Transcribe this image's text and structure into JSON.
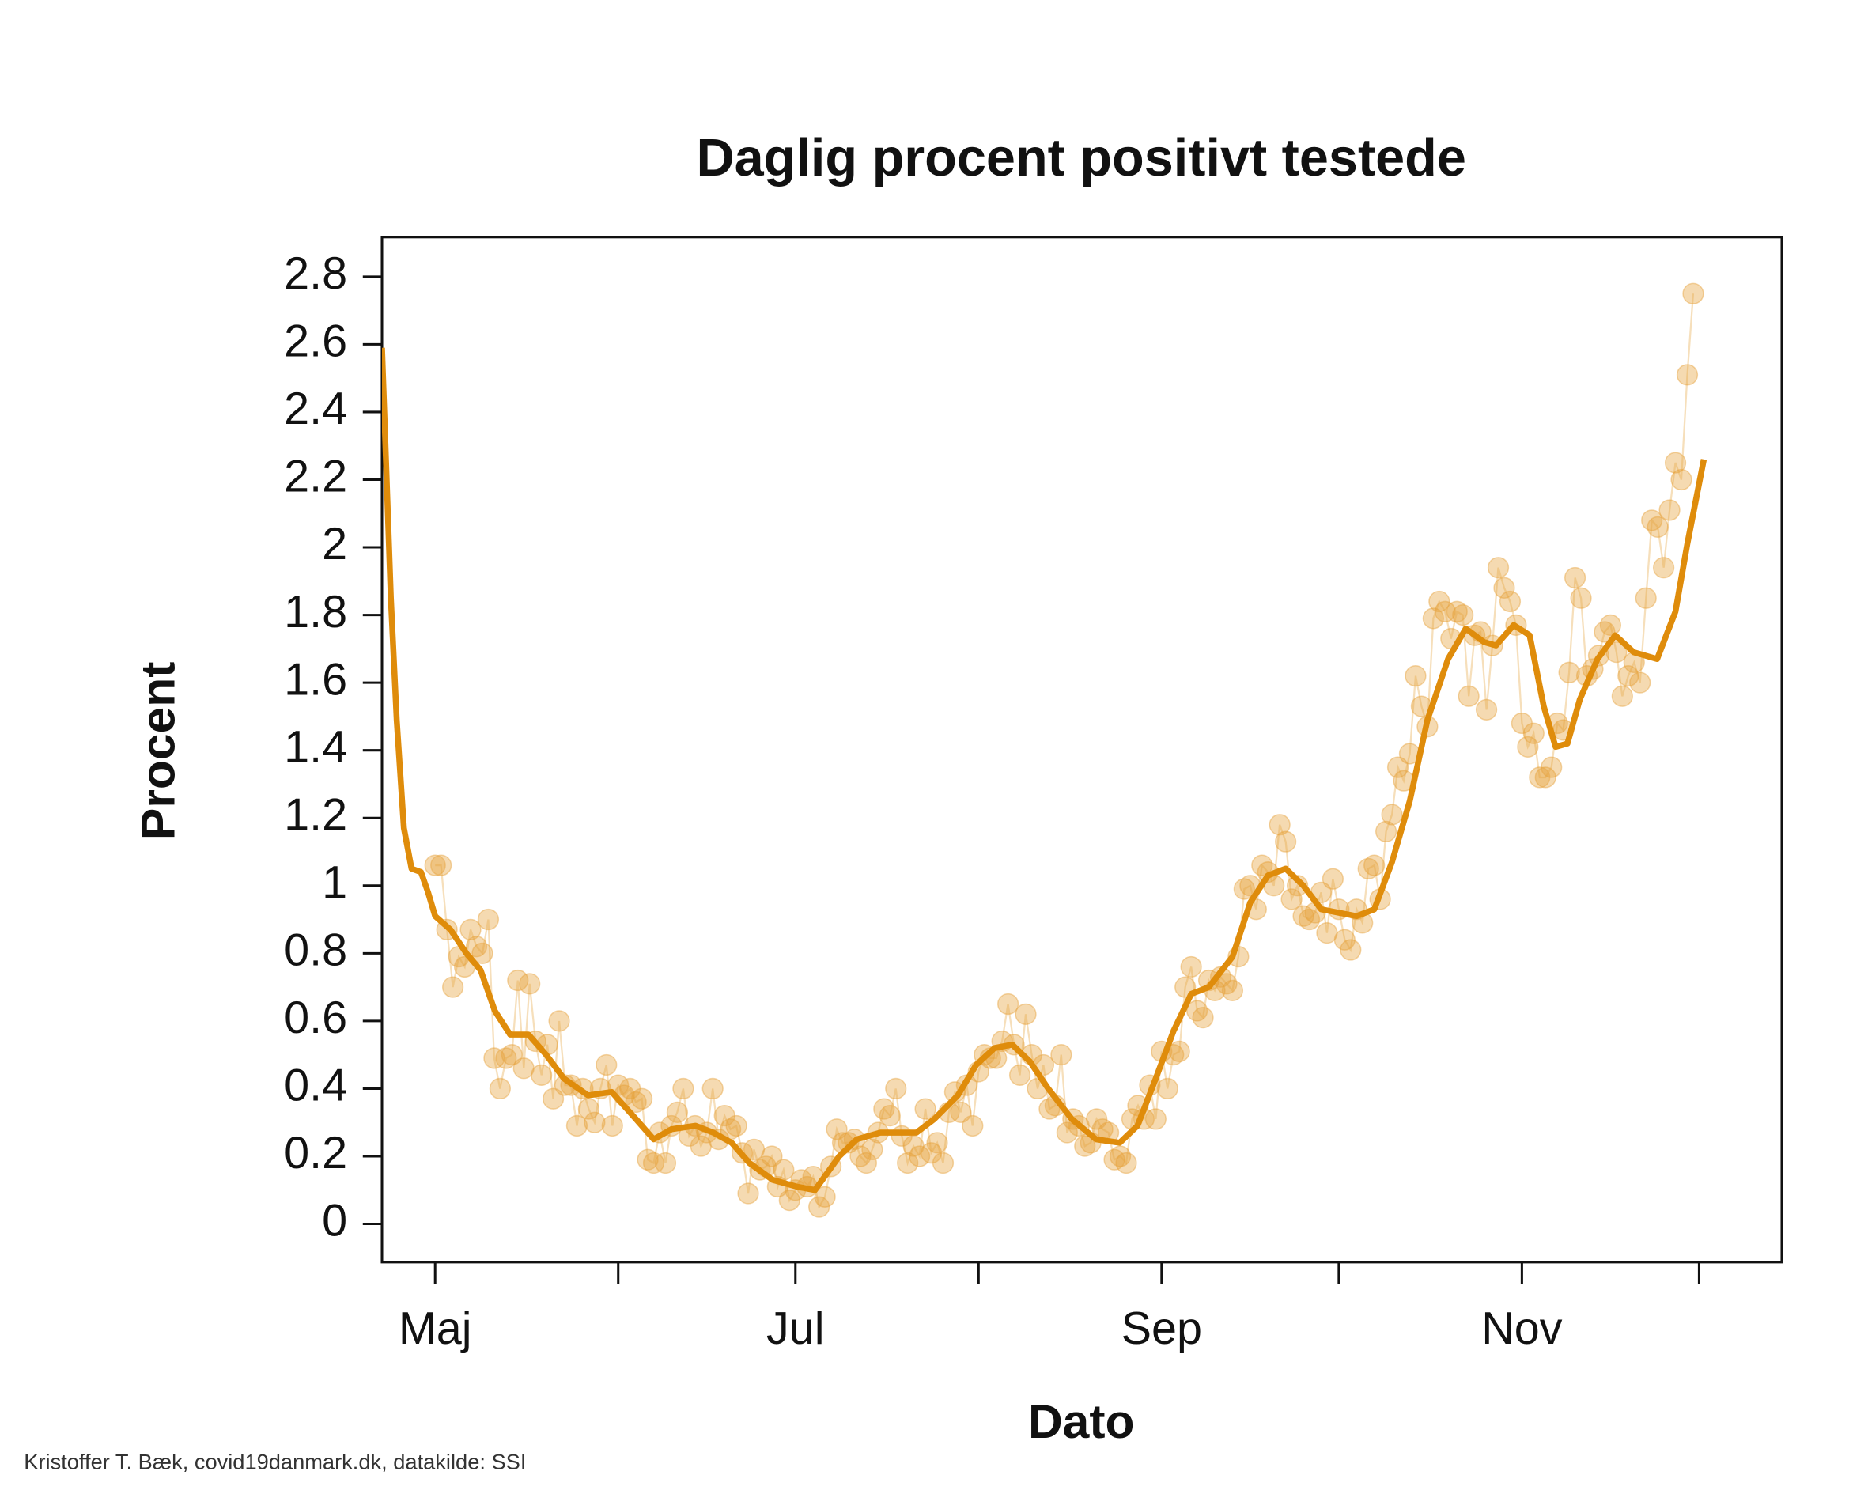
{
  "chart_data": {
    "type": "line",
    "title": "Daglig procent positivt testede",
    "x_label": "Dato",
    "y_label": "Procent",
    "caption": "Kristoffer T. Bæk, covid19danmark.dk, datakilde: SSI",
    "xlim": [
      -9,
      228
    ],
    "ylim": [
      -0.113,
      2.917
    ],
    "xticks": [
      {
        "value": 0,
        "label": "Maj"
      },
      {
        "value": 31,
        "label": null
      },
      {
        "value": 61,
        "label": "Jul"
      },
      {
        "value": 92,
        "label": null
      },
      {
        "value": 123,
        "label": "Sep"
      },
      {
        "value": 153,
        "label": null
      },
      {
        "value": 184,
        "label": "Nov"
      },
      {
        "value": 214,
        "label": null
      }
    ],
    "yticks": [
      0,
      0.2,
      0.4,
      0.6,
      0.8,
      1,
      1.2,
      1.4,
      1.6,
      1.8,
      2,
      2.2,
      2.4,
      2.6,
      2.8
    ],
    "series": [
      {
        "mode": "markers",
        "color": "#e6a23c",
        "x": [
          0,
          1,
          2,
          3,
          4,
          5,
          6,
          7,
          8,
          9,
          10,
          11,
          12,
          13,
          14,
          15,
          16,
          17,
          18,
          19,
          20,
          21,
          22,
          23,
          24,
          25,
          26,
          27,
          28,
          29,
          30,
          31,
          32,
          33,
          34,
          35,
          36,
          37,
          38,
          39,
          40,
          41,
          42,
          43,
          44,
          45,
          46,
          47,
          48,
          49,
          50,
          51,
          52,
          53,
          54,
          55,
          56,
          57,
          58,
          59,
          60,
          61,
          62,
          63,
          64,
          65,
          66,
          67,
          68,
          69,
          70,
          71,
          72,
          73,
          74,
          75,
          76,
          77,
          78,
          79,
          80,
          81,
          82,
          83,
          84,
          85,
          86,
          87,
          88,
          89,
          90,
          91,
          92,
          93,
          94,
          95,
          96,
          97,
          98,
          99,
          100,
          101,
          102,
          103,
          104,
          105,
          106,
          107,
          108,
          109,
          110,
          111,
          112,
          113,
          114,
          115,
          116,
          117,
          118,
          119,
          120,
          121,
          122,
          123,
          124,
          125,
          126,
          127,
          128,
          129,
          130,
          131,
          132,
          133,
          134,
          135,
          136,
          137,
          138,
          139,
          140,
          141,
          142,
          143,
          144,
          145,
          146,
          147,
          148,
          149,
          150,
          151,
          152,
          153,
          154,
          155,
          156,
          157,
          158,
          159,
          160,
          161,
          162,
          163,
          164,
          165,
          166,
          167,
          168,
          169,
          170,
          171,
          172,
          173,
          174,
          175,
          176,
          177,
          178,
          179,
          180,
          181,
          182,
          183,
          184,
          185,
          186,
          187,
          188,
          189,
          190,
          191,
          192,
          193,
          194,
          195,
          196,
          197,
          198,
          199,
          200,
          201,
          202,
          203,
          204,
          205,
          206,
          207,
          208,
          209,
          210,
          211,
          212,
          213
        ],
        "values": [
          1.06,
          1.06,
          0.87,
          0.7,
          0.79,
          0.76,
          0.87,
          0.82,
          0.8,
          0.9,
          0.49,
          0.4,
          0.49,
          0.5,
          0.72,
          0.46,
          0.71,
          0.54,
          0.44,
          0.53,
          0.37,
          0.6,
          0.41,
          0.41,
          0.29,
          0.4,
          0.34,
          0.3,
          0.4,
          0.47,
          0.29,
          0.41,
          0.38,
          0.4,
          0.36,
          0.37,
          0.19,
          0.18,
          0.27,
          0.18,
          0.29,
          0.33,
          0.4,
          0.26,
          0.29,
          0.23,
          0.27,
          0.4,
          0.25,
          0.32,
          0.28,
          0.29,
          0.21,
          0.09,
          0.22,
          0.16,
          0.17,
          0.2,
          0.11,
          0.16,
          0.07,
          0.1,
          0.13,
          0.11,
          0.14,
          0.05,
          0.08,
          0.17,
          0.28,
          0.24,
          0.24,
          0.25,
          0.2,
          0.18,
          0.22,
          0.27,
          0.34,
          0.32,
          0.4,
          0.26,
          0.18,
          0.23,
          0.2,
          0.34,
          0.21,
          0.24,
          0.18,
          0.33,
          0.39,
          0.33,
          0.41,
          0.29,
          0.45,
          0.5,
          0.49,
          0.49,
          0.54,
          0.65,
          0.53,
          0.44,
          0.62,
          0.5,
          0.4,
          0.47,
          0.34,
          0.35,
          0.5,
          0.27,
          0.31,
          0.29,
          0.23,
          0.24,
          0.31,
          0.28,
          0.27,
          0.19,
          0.2,
          0.18,
          0.31,
          0.35,
          0.31,
          0.41,
          0.31,
          0.51,
          0.4,
          0.5,
          0.51,
          0.7,
          0.76,
          0.63,
          0.61,
          0.72,
          0.69,
          0.73,
          0.71,
          0.69,
          0.79,
          0.99,
          1.0,
          0.93,
          1.06,
          1.04,
          1.0,
          1.18,
          1.13,
          0.96,
          1.0,
          0.91,
          0.9,
          0.92,
          0.98,
          0.86,
          1.02,
          0.93,
          0.84,
          0.81,
          0.93,
          0.89,
          1.05,
          1.06,
          0.96,
          1.16,
          1.21,
          1.35,
          1.31,
          1.39,
          1.62,
          1.53,
          1.47,
          1.79,
          1.84,
          1.81,
          1.73,
          1.81,
          1.8,
          1.56,
          1.74,
          1.75,
          1.52,
          1.71,
          1.94,
          1.88,
          1.84,
          1.77,
          1.48,
          1.41,
          1.45,
          1.32,
          1.32,
          1.35,
          1.48,
          1.46,
          1.63,
          1.91,
          1.85,
          1.62,
          1.64,
          1.68,
          1.75,
          1.77,
          1.69,
          1.56,
          1.62,
          1.66,
          1.6,
          1.85,
          2.08,
          2.06,
          1.94,
          2.11,
          2.25,
          2.2,
          2.51,
          2.75
        ]
      },
      {
        "mode": "line",
        "color": "#df8c0b",
        "x": [
          -9,
          -7.5,
          -6.5,
          -5.3,
          -4,
          -2.4,
          -1.2,
          0,
          2.6,
          5.3,
          7.7,
          10.1,
          12.7,
          15.8,
          18.8,
          21.8,
          25.9,
          29.9,
          34,
          37,
          40,
          44.1,
          47.1,
          50.2,
          53.2,
          57.2,
          61.3,
          64.3,
          68.4,
          71.4,
          75.4,
          81.5,
          84.5,
          88.5,
          91.6,
          94.7,
          97.7,
          100.7,
          103.8,
          107.8,
          111.9,
          115.9,
          118.9,
          122,
          125,
          128,
          131,
          135,
          138,
          141,
          144,
          147,
          150,
          153,
          156,
          159,
          162,
          165,
          168,
          171.5,
          174.5,
          177.6,
          179.6,
          182.6,
          185.3,
          187.7,
          189.7,
          191.7,
          193.8,
          196.8,
          199.8,
          202.9,
          206.9,
          210,
          212,
          214.8
        ],
        "values": [
          2.59,
          1.85,
          1.49,
          1.17,
          1.05,
          1.04,
          0.98,
          0.91,
          0.87,
          0.8,
          0.75,
          0.63,
          0.56,
          0.56,
          0.5,
          0.43,
          0.38,
          0.39,
          0.31,
          0.25,
          0.28,
          0.29,
          0.27,
          0.24,
          0.18,
          0.13,
          0.11,
          0.1,
          0.2,
          0.25,
          0.27,
          0.27,
          0.31,
          0.38,
          0.47,
          0.52,
          0.53,
          0.48,
          0.4,
          0.31,
          0.25,
          0.24,
          0.29,
          0.43,
          0.57,
          0.68,
          0.7,
          0.79,
          0.95,
          1.03,
          1.05,
          1.0,
          0.93,
          0.92,
          0.91,
          0.93,
          1.07,
          1.25,
          1.49,
          1.67,
          1.76,
          1.72,
          1.71,
          1.77,
          1.74,
          1.53,
          1.41,
          1.42,
          1.55,
          1.67,
          1.74,
          1.69,
          1.67,
          1.81,
          2.01,
          2.26
        ]
      }
    ]
  }
}
